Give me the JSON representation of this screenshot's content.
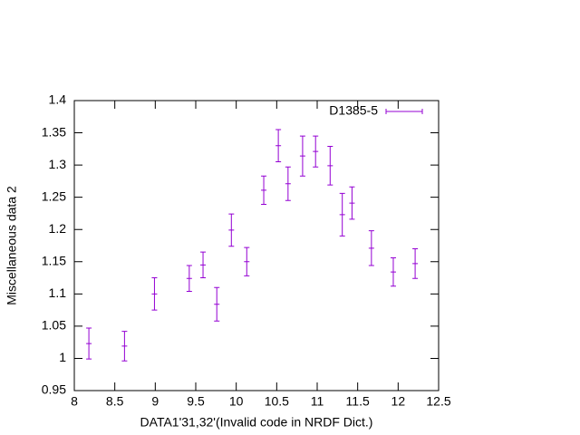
{
  "chart_data": {
    "type": "errorbar",
    "x_label": "DATA1'31,32'(Invalid code in NRDF Dict.)",
    "y_label": "Miscellaneous data 2",
    "xlim": [
      8,
      12.5
    ],
    "xticks": [
      8,
      8.5,
      9,
      9.5,
      10,
      10.5,
      11,
      11.5,
      12,
      12.5
    ],
    "ylim": [
      0.95,
      1.4
    ],
    "yticks": [
      0.95,
      1,
      1.05,
      1.1,
      1.15,
      1.2,
      1.25,
      1.3,
      1.35,
      1.4
    ],
    "legend": "top-right",
    "series": [
      {
        "name": "D1385-5",
        "color": "#9400d3",
        "x": [
          8.18,
          8.62,
          8.99,
          9.42,
          9.59,
          9.76,
          9.94,
          10.13,
          10.34,
          10.52,
          10.64,
          10.82,
          10.98,
          11.16,
          11.31,
          11.43,
          11.67,
          11.94,
          12.21
        ],
        "values": [
          1.023,
          1.019,
          1.1,
          1.124,
          1.145,
          1.084,
          1.199,
          1.15,
          1.261,
          1.33,
          1.271,
          1.314,
          1.321,
          1.299,
          1.223,
          1.241,
          1.171,
          1.134,
          1.147
        ],
        "errors": [
          0.024,
          0.023,
          0.025,
          0.02,
          0.02,
          0.026,
          0.025,
          0.022,
          0.022,
          0.025,
          0.026,
          0.031,
          0.024,
          0.03,
          0.033,
          0.025,
          0.027,
          0.022,
          0.023
        ]
      }
    ]
  }
}
